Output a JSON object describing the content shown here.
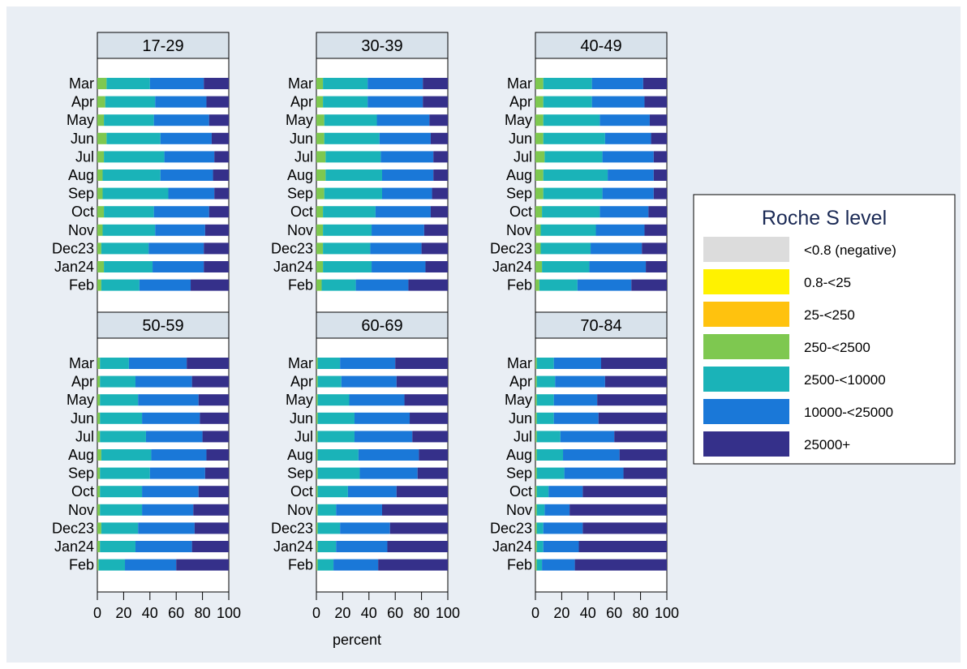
{
  "chart_data": {
    "type": "bar",
    "orientation": "horizontal",
    "stacked": true,
    "xlabel": "percent",
    "xlim": [
      0,
      100
    ],
    "xticks": [
      "0",
      "20",
      "40",
      "60",
      "80",
      "100"
    ],
    "categories": [
      "Mar",
      "Apr",
      "May",
      "Jun",
      "Jul",
      "Aug",
      "Sep",
      "Oct",
      "Nov",
      "Dec23",
      "Jan24",
      "Feb"
    ],
    "legend": {
      "title": "Roche S level",
      "placement": "right",
      "entries": [
        {
          "label": "<0.8 (negative)",
          "color": "#dcdcdc"
        },
        {
          "label": "0.8-<25",
          "color": "#fff200"
        },
        {
          "label": "25-<250",
          "color": "#ffc20e"
        },
        {
          "label": "250-<2500",
          "color": "#7ec850"
        },
        {
          "label": "2500-<10000",
          "color": "#1ab3b8"
        },
        {
          "label": "10000-<25000",
          "color": "#1a78d8"
        },
        {
          "label": "25000+",
          "color": "#35308a"
        }
      ]
    },
    "panels": [
      {
        "title": "17-29",
        "rows": [
          [
            0,
            0,
            0,
            7,
            33,
            41,
            19
          ],
          [
            0,
            0,
            0,
            6,
            38,
            39,
            17
          ],
          [
            0,
            0,
            0,
            5,
            38,
            42,
            15
          ],
          [
            0,
            0,
            0,
            7,
            41,
            39,
            13
          ],
          [
            0,
            0,
            0,
            5,
            46,
            38,
            11
          ],
          [
            0,
            0,
            0,
            4,
            44,
            40,
            12
          ],
          [
            0,
            0,
            0,
            4,
            50,
            35,
            11
          ],
          [
            0,
            0,
            0,
            5,
            38,
            42,
            15
          ],
          [
            0,
            0,
            0,
            4,
            40,
            38,
            18
          ],
          [
            0,
            0,
            0,
            3,
            36,
            42,
            19
          ],
          [
            0,
            0,
            0,
            5,
            37,
            39,
            19
          ],
          [
            0,
            0,
            0,
            3,
            29,
            39,
            29
          ]
        ]
      },
      {
        "title": "30-39",
        "rows": [
          [
            0,
            0,
            0,
            5,
            34,
            42,
            19
          ],
          [
            0,
            0,
            0,
            5,
            34,
            42,
            19
          ],
          [
            0,
            0,
            0,
            6,
            40,
            40,
            14
          ],
          [
            0,
            0,
            0,
            6,
            42,
            39,
            13
          ],
          [
            0,
            0,
            0,
            7,
            42,
            40,
            11
          ],
          [
            0,
            0,
            0,
            7,
            43,
            39,
            11
          ],
          [
            0,
            0,
            0,
            6,
            44,
            38,
            12
          ],
          [
            0,
            0,
            0,
            5,
            40,
            42,
            13
          ],
          [
            0,
            0,
            0,
            5,
            37,
            40,
            18
          ],
          [
            0,
            0,
            0,
            5,
            36,
            39,
            20
          ],
          [
            0,
            0,
            0,
            5,
            37,
            41,
            17
          ],
          [
            0,
            0,
            0,
            4,
            26,
            40,
            30
          ]
        ]
      },
      {
        "title": "40-49",
        "rows": [
          [
            0,
            0,
            0,
            6,
            37,
            39,
            18
          ],
          [
            0,
            0,
            0,
            6,
            37,
            40,
            17
          ],
          [
            0,
            0,
            0,
            6,
            43,
            38,
            13
          ],
          [
            0,
            0,
            0,
            6,
            47,
            35,
            12
          ],
          [
            0,
            0,
            0,
            7,
            44,
            39,
            10
          ],
          [
            0,
            0,
            0,
            6,
            49,
            35,
            10
          ],
          [
            0,
            0,
            0,
            6,
            45,
            39,
            10
          ],
          [
            0,
            0,
            0,
            5,
            44,
            37,
            14
          ],
          [
            0,
            0,
            0,
            4,
            42,
            37,
            17
          ],
          [
            0,
            0,
            0,
            4,
            38,
            39,
            19
          ],
          [
            0,
            0,
            0,
            5,
            36,
            43,
            16
          ],
          [
            0,
            0,
            0,
            3,
            29,
            41,
            27
          ]
        ]
      },
      {
        "title": "50-59",
        "rows": [
          [
            0,
            0,
            0,
            2,
            22,
            44,
            32
          ],
          [
            0,
            0,
            0,
            2,
            27,
            43,
            28
          ],
          [
            0,
            0,
            0,
            2,
            29,
            46,
            23
          ],
          [
            0,
            0,
            0,
            2,
            32,
            44,
            22
          ],
          [
            0,
            0,
            0,
            2,
            35,
            43,
            20
          ],
          [
            0,
            0,
            0,
            3,
            38,
            42,
            17
          ],
          [
            0,
            0,
            0,
            2,
            38,
            42,
            18
          ],
          [
            0,
            0,
            0,
            2,
            32,
            43,
            23
          ],
          [
            0,
            0,
            0,
            2,
            32,
            39,
            27
          ],
          [
            0,
            0,
            0,
            3,
            28,
            43,
            26
          ],
          [
            0,
            0,
            0,
            2,
            27,
            43,
            28
          ],
          [
            0,
            0,
            0,
            1,
            20,
            39,
            40
          ]
        ]
      },
      {
        "title": "60-69",
        "rows": [
          [
            0,
            0,
            0,
            1,
            17,
            42,
            40
          ],
          [
            0,
            0,
            0,
            1,
            18,
            42,
            39
          ],
          [
            0,
            0,
            0,
            1,
            24,
            42,
            33
          ],
          [
            0,
            0,
            0,
            1,
            28,
            42,
            29
          ],
          [
            0,
            0,
            0,
            1,
            28,
            44,
            27
          ],
          [
            0,
            0,
            0,
            1,
            31,
            46,
            22
          ],
          [
            0,
            0,
            0,
            1,
            32,
            44,
            23
          ],
          [
            0,
            0,
            0,
            1,
            23,
            37,
            39
          ],
          [
            0,
            0,
            0,
            1,
            14,
            35,
            50
          ],
          [
            0,
            0,
            0,
            1,
            17,
            38,
            44
          ],
          [
            0,
            0,
            0,
            1,
            14,
            39,
            46
          ],
          [
            0,
            0,
            0,
            1,
            12,
            34,
            53
          ]
        ]
      },
      {
        "title": "70-84",
        "rows": [
          [
            0,
            0,
            0,
            1,
            13,
            36,
            50
          ],
          [
            0,
            0,
            0,
            1,
            14,
            38,
            47
          ],
          [
            0,
            0,
            0,
            1,
            13,
            33,
            53
          ],
          [
            0,
            0,
            0,
            1,
            13,
            34,
            52
          ],
          [
            0,
            0,
            0,
            1,
            18,
            41,
            40
          ],
          [
            0,
            0,
            0,
            1,
            20,
            43,
            36
          ],
          [
            0,
            0,
            0,
            1,
            21,
            45,
            33
          ],
          [
            0,
            0,
            0,
            1,
            9,
            26,
            64
          ],
          [
            0,
            0,
            0,
            1,
            6,
            19,
            74
          ],
          [
            0,
            0,
            0,
            1,
            5,
            30,
            64
          ],
          [
            0,
            0,
            0,
            1,
            5,
            27,
            67
          ],
          [
            0,
            0,
            0,
            1,
            4,
            25,
            70
          ]
        ]
      }
    ]
  }
}
